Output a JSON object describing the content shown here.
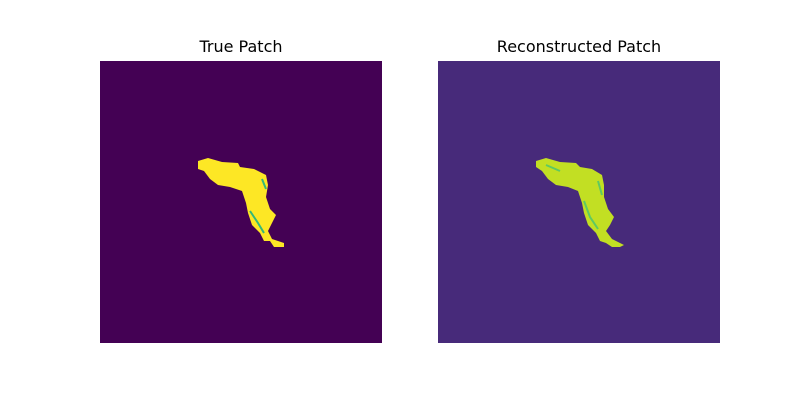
{
  "panels": [
    {
      "title": "True Patch",
      "background_color": "#440154",
      "shape_color": "#fde725",
      "edge_color": "#35b779"
    },
    {
      "title": "Reconstructed Patch",
      "background_color": "#472a7a",
      "shape_color": "#c2df23",
      "edge_color": "#5ec962"
    }
  ]
}
